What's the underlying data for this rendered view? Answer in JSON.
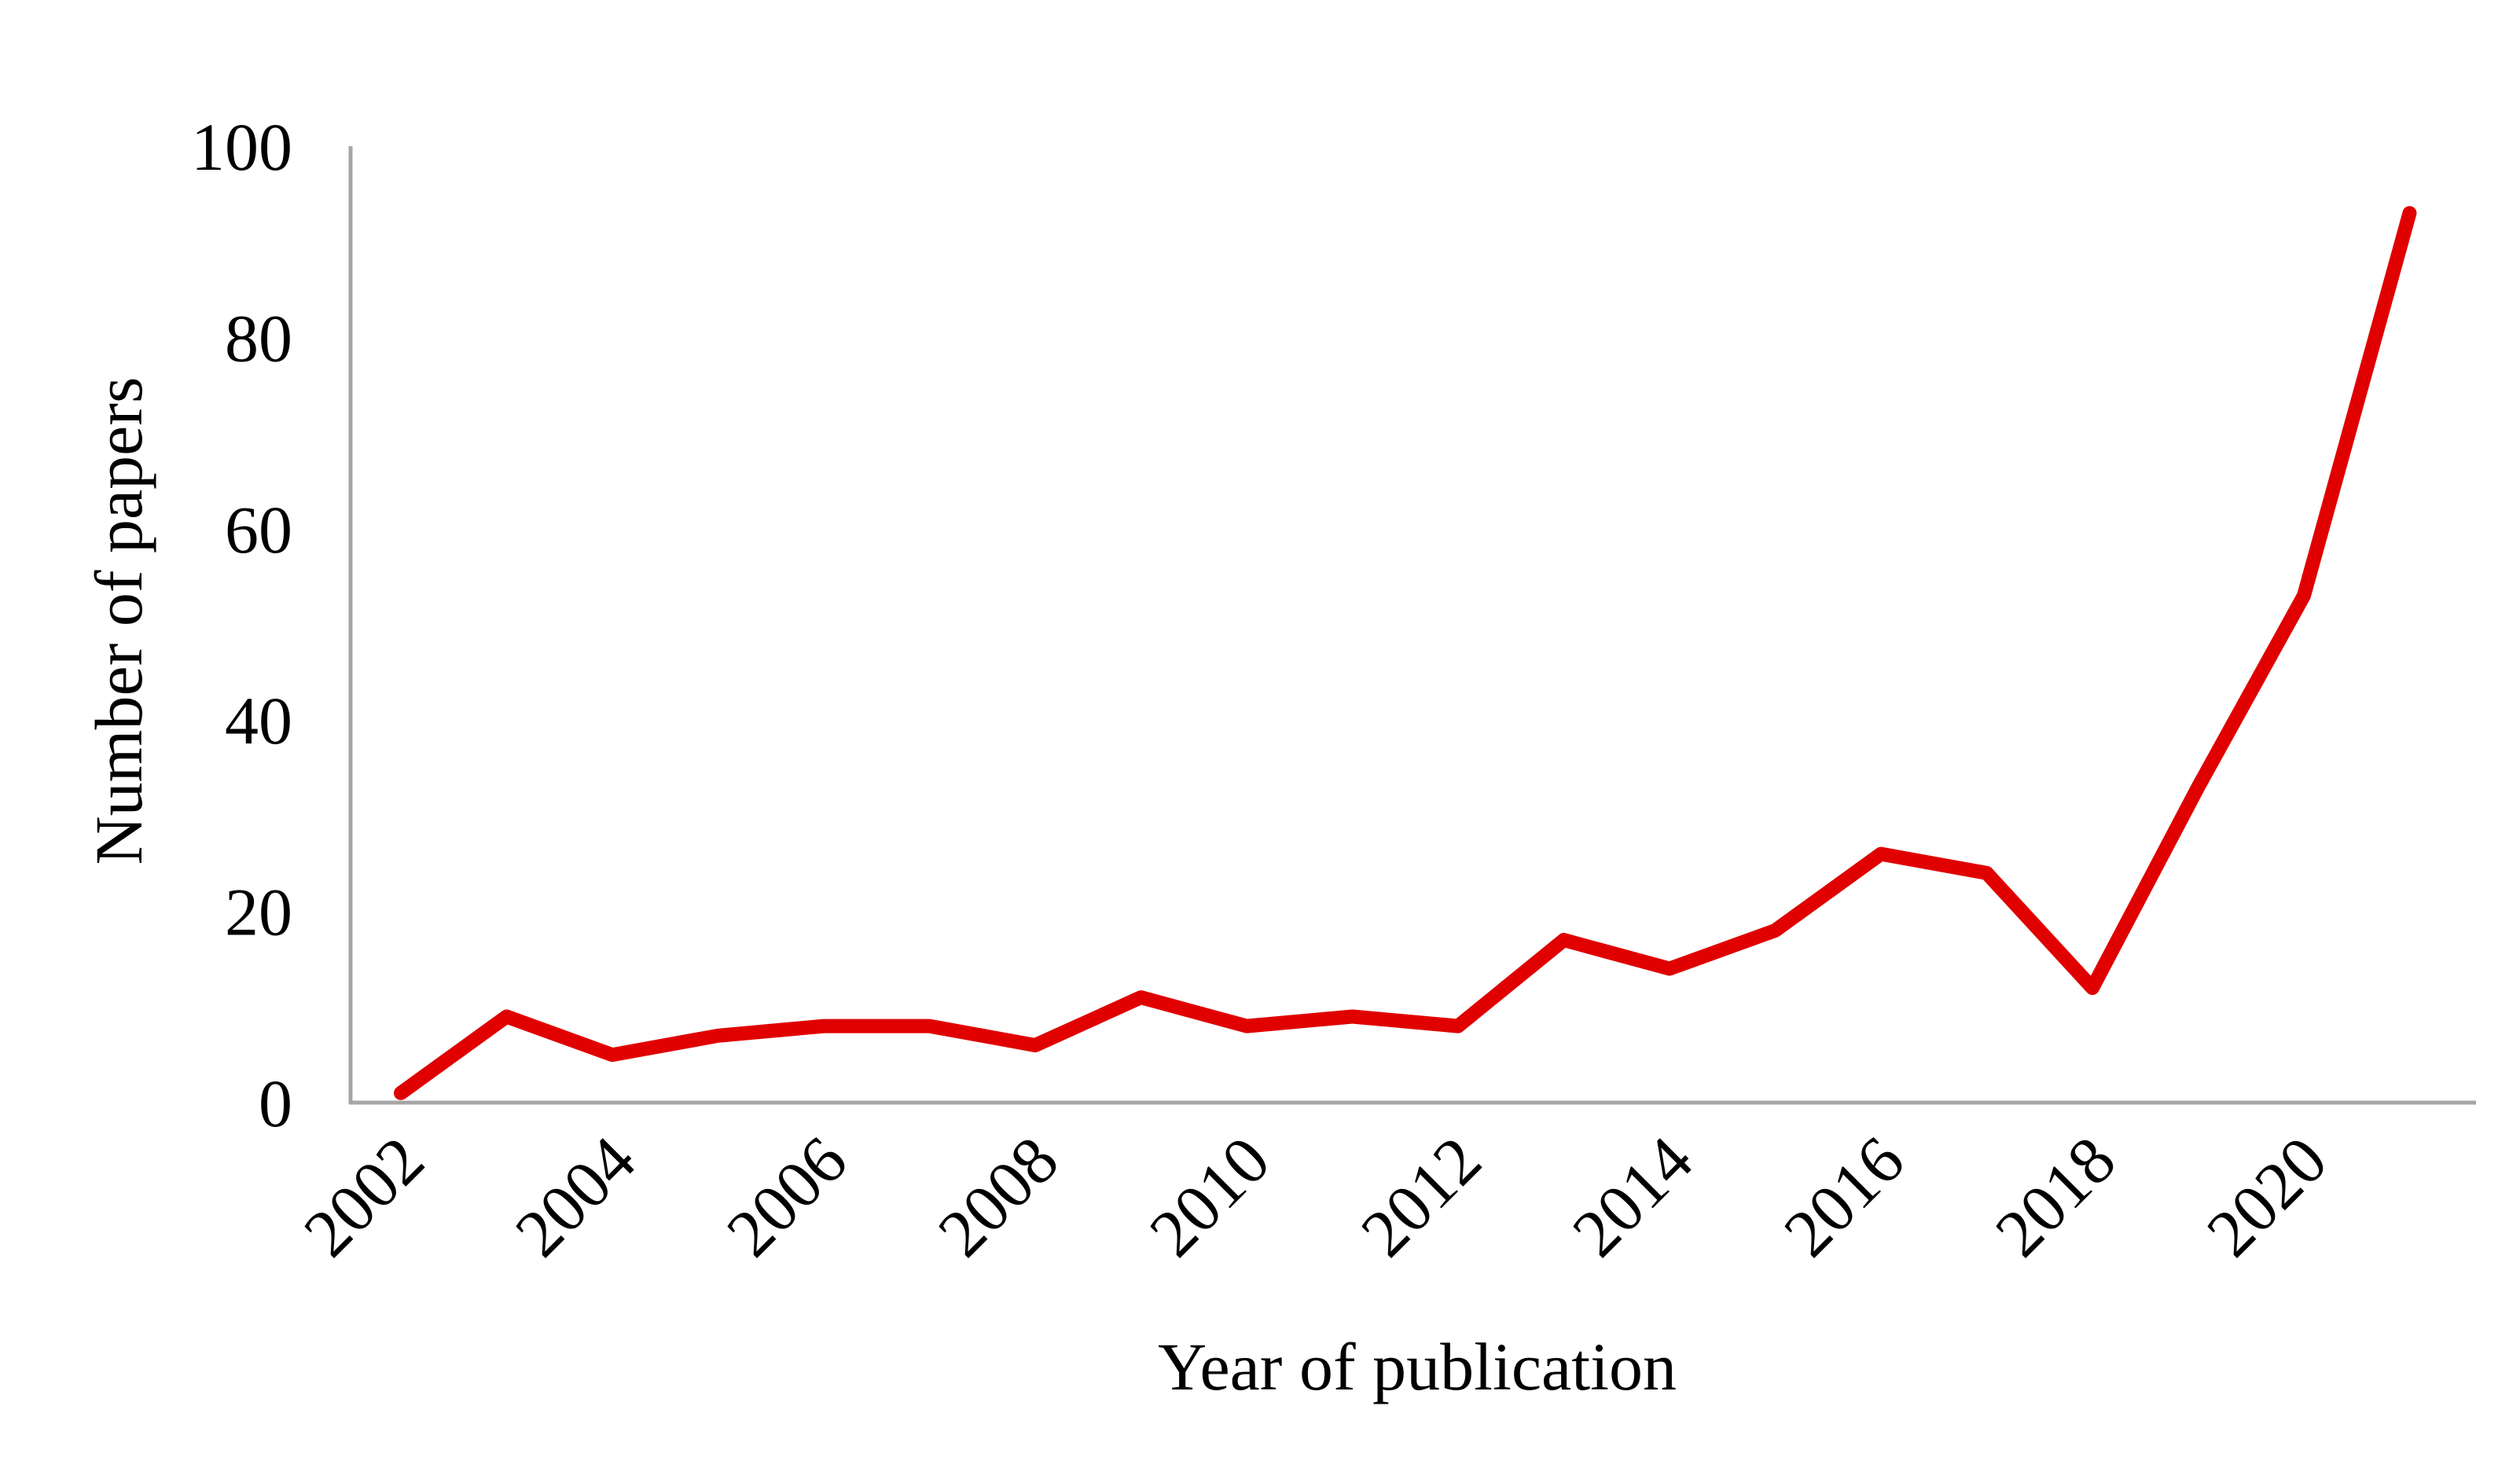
{
  "chart_data": {
    "type": "line",
    "title": "",
    "xlabel": "Year of publication",
    "ylabel": "Number of papers",
    "x": [
      2002,
      2003,
      2004,
      2005,
      2006,
      2007,
      2008,
      2009,
      2010,
      2011,
      2012,
      2013,
      2014,
      2015,
      2016,
      2017,
      2018,
      2019,
      2020,
      2021
    ],
    "x_tick_labels": [
      "2002",
      "2004",
      "2006",
      "2008",
      "2010",
      "2012",
      "2014",
      "2016",
      "2018",
      "2020"
    ],
    "y_ticks": [
      0,
      20,
      40,
      60,
      80,
      100
    ],
    "ylim": [
      0,
      100
    ],
    "grid": false,
    "legend": "none",
    "series": [
      {
        "color": "#e00000",
        "values": [
          1,
          9,
          5,
          7,
          8,
          8,
          6,
          11,
          8,
          9,
          8,
          17,
          14,
          18,
          26,
          24,
          12,
          33,
          53,
          93
        ]
      }
    ]
  }
}
